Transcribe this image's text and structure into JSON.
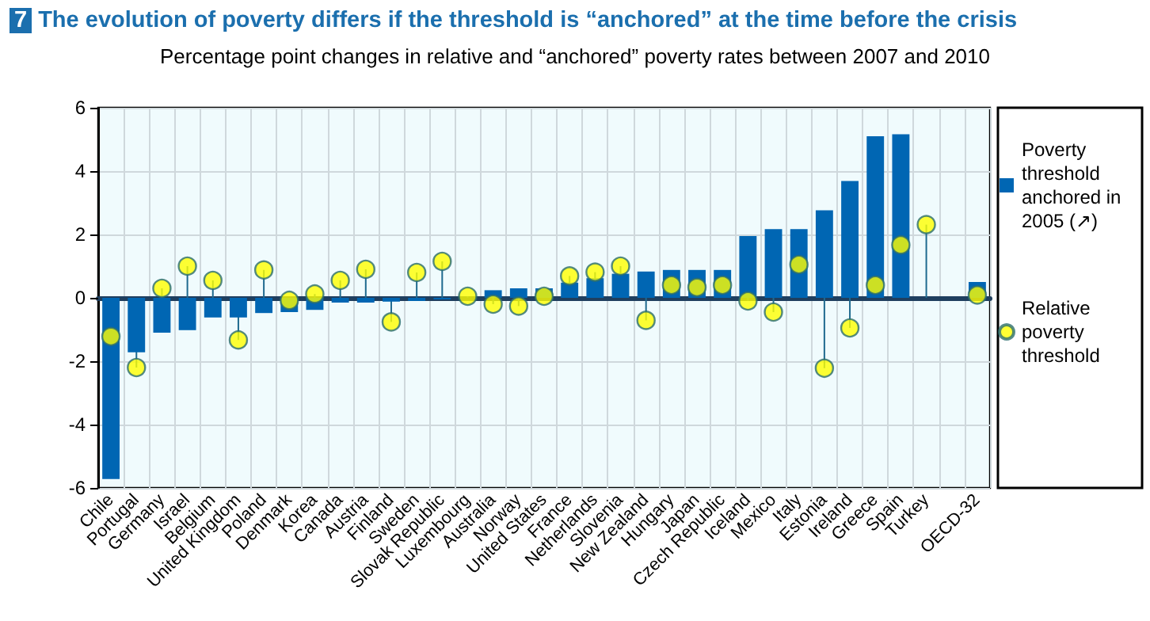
{
  "chart_data": {
    "type": "bar",
    "title": "7 The evolution of poverty differs if the threshold is “anchored” at the time before the crisis",
    "subtitle": "Percentage point changes in relative and “anchored” poverty rates between 2007 and 2010",
    "categories": [
      "Chile",
      "Portugal",
      "Germany",
      "Israel",
      "Belgium",
      "United Kingdom",
      "Poland",
      "Denmark",
      "Korea",
      "Canada",
      "Austria",
      "Finland",
      "Sweden",
      "Slovak Republic",
      "Luxembourg",
      "Australia",
      "Norway",
      "United States",
      "France",
      "Netherlands",
      "Slovenia",
      "New Zealand",
      "Hungary",
      "Japan",
      "Czech Republic",
      "Iceland",
      "Mexico",
      "Italy",
      "Estonia",
      "Ireland",
      "Greece",
      "Spain",
      "Turkey",
      null,
      "OECD-32"
    ],
    "series": [
      {
        "name": "Poverty threshold anchored in 2005 (↗)",
        "color": "#0066b3",
        "values": [
          -5.72,
          -1.72,
          -1.1,
          -1.02,
          -0.62,
          -0.62,
          -0.48,
          -0.45,
          -0.38,
          -0.15,
          -0.15,
          -0.12,
          -0.1,
          -0.05,
          0,
          0.24,
          0.3,
          0.3,
          0.48,
          0.62,
          0.76,
          0.83,
          0.88,
          0.88,
          0.88,
          1.95,
          2.17,
          2.17,
          2.76,
          3.69,
          5.1,
          5.16,
          null,
          null,
          0.5
        ]
      },
      {
        "name": "Relative poverty threshold",
        "type": "lollipop",
        "color": "#ffff00",
        "values": [
          -1.22,
          -2.2,
          0.3,
          1.0,
          0.55,
          -1.33,
          0.88,
          -0.08,
          0.12,
          0.55,
          0.9,
          -0.76,
          0.8,
          1.15,
          0.05,
          -0.2,
          -0.26,
          0.05,
          0.69,
          0.81,
          1.0,
          -0.71,
          0.4,
          0.33,
          0.4,
          -0.1,
          -0.45,
          1.05,
          -2.22,
          -0.95,
          0.4,
          1.67,
          2.31,
          null,
          0.09
        ]
      }
    ],
    "ylim": [
      -6,
      6
    ],
    "yticks": [
      -6,
      -4,
      -2,
      0,
      2,
      4,
      6
    ],
    "grid": true,
    "legend": "right",
    "marker": "circle"
  }
}
